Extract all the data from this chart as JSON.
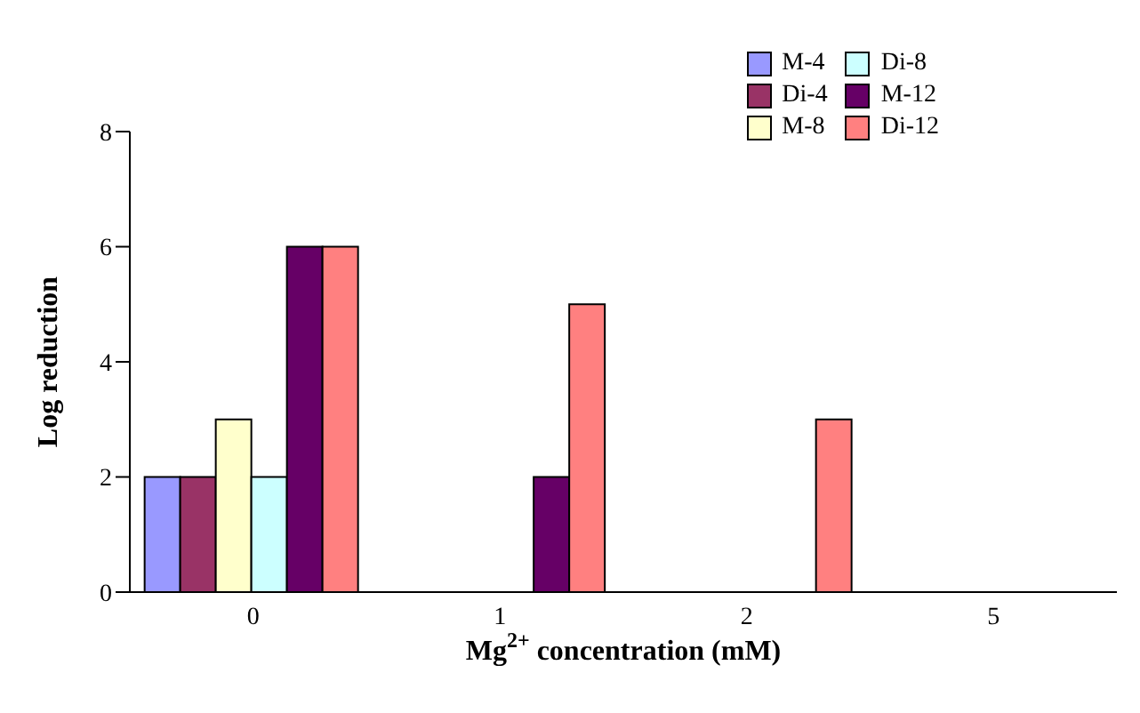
{
  "chart_data": {
    "type": "bar",
    "xlabel": "Mg$^{2+}$ concentration (mM)",
    "ylabel": "Log reduction",
    "categories": [
      "0",
      "1",
      "2",
      "5"
    ],
    "ylim": [
      0,
      8
    ],
    "yticks": [
      0,
      2,
      4,
      6,
      8
    ],
    "grid": false,
    "legend": "top right",
    "series": [
      {
        "name": "M-4",
        "color": "#9999ff",
        "values": [
          2,
          0,
          0,
          0
        ]
      },
      {
        "name": "Di-4",
        "color": "#993366",
        "values": [
          2,
          0,
          0,
          0
        ]
      },
      {
        "name": "M-8",
        "color": "#ffffcc",
        "values": [
          3,
          0,
          0,
          0
        ]
      },
      {
        "name": "Di-8",
        "color": "#ccffff",
        "values": [
          2,
          0,
          0,
          0
        ]
      },
      {
        "name": "M-12",
        "color": "#660066",
        "values": [
          6,
          2,
          0,
          0
        ]
      },
      {
        "name": "Di-12",
        "color": "#ff8080",
        "values": [
          6,
          5,
          3,
          0
        ]
      }
    ]
  }
}
